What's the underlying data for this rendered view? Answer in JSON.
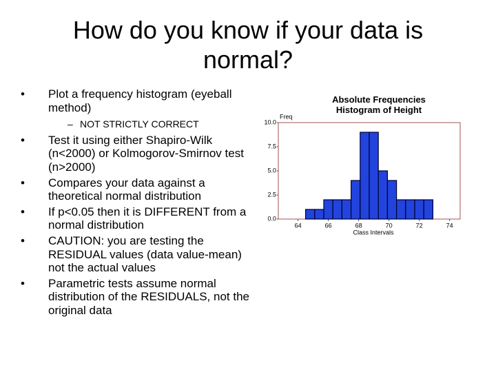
{
  "title": "How do you know if your data is normal?",
  "bullets": [
    {
      "text": "Plot a frequency histogram (eyeball method)",
      "sub": "NOT STRICTLY CORRECT"
    },
    {
      "text": "Test it using either Shapiro-Wilk (n<2000) or Kolmogorov-Smirnov test (n>2000)"
    },
    {
      "text": "Compares your data against a theoretical normal distribution"
    },
    {
      "text": "If p<0.05 then it is DIFFERENT from a normal distribution"
    },
    {
      "text": "CAUTION: you are testing the RESIDUAL values (data value-mean) not the actual values"
    },
    {
      "text": "Parametric tests assume normal distribution of the RESIDUALS, not the original data"
    }
  ],
  "chart_data": {
    "type": "histogram",
    "title": "Absolute Frequencies Histogram of Height",
    "y_label": "Freq",
    "x_label": "Class Intervals",
    "bins": [
      64.5,
      65.1,
      65.7,
      66.3,
      66.9,
      67.5,
      68.1,
      68.7,
      69.3,
      69.9,
      70.5,
      71.1,
      71.7,
      72.3,
      72.9
    ],
    "counts": [
      1,
      1,
      2,
      2,
      2,
      4,
      9,
      9,
      5,
      4,
      2,
      2,
      2,
      2
    ],
    "color": "#2244dd",
    "xlim": [
      62.7,
      74.7
    ],
    "xticks": [
      64,
      66,
      68,
      70,
      72,
      74
    ],
    "ylim": [
      0,
      10
    ],
    "yticks": [
      {
        "value": 0,
        "label": "0.0"
      },
      {
        "value": 2.5,
        "label": "2.5"
      },
      {
        "value": 5,
        "label": "5.0"
      },
      {
        "value": 7.5,
        "label": "7.5"
      },
      {
        "value": 10,
        "label": "10.0"
      }
    ]
  }
}
